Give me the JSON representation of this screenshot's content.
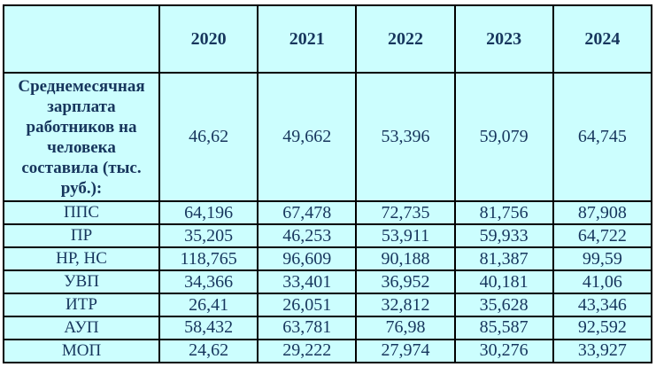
{
  "colors": {
    "table_background": "#ccfefe",
    "text": "#17365d",
    "border": "#000000",
    "page_background": "#ffffff"
  },
  "table": {
    "columns": [
      "",
      "2020",
      "2021",
      "2022",
      "2023",
      "2024"
    ],
    "rows": [
      {
        "label": "Среднемесячная\nзарплата\nработников на\nчеловека\nсоставила (тыс.\nруб.):",
        "values": [
          "46,62",
          "49,662",
          "53,396",
          "59,079",
          "64,745"
        ]
      },
      {
        "label": "ППС",
        "values": [
          "64,196",
          "67,478",
          "72,735",
          "81,756",
          "87,908"
        ]
      },
      {
        "label": "ПР",
        "values": [
          "35,205",
          "46,253",
          "53,911",
          "59,933",
          "64,722"
        ]
      },
      {
        "label": "НР, НС",
        "values": [
          "118,765",
          "96,609",
          "90,188",
          "81,387",
          "99,59"
        ]
      },
      {
        "label": "УВП",
        "values": [
          "34,366",
          "33,401",
          "36,952",
          "40,181",
          "41,06"
        ]
      },
      {
        "label": "ИТР",
        "values": [
          "26,41",
          "26,051",
          "32,812",
          "35,628",
          "43,346"
        ]
      },
      {
        "label": "АУП",
        "values": [
          "58,432",
          "63,781",
          "76,98",
          "85,587",
          "92,592"
        ]
      },
      {
        "label": "МОП",
        "values": [
          "24,62",
          "29,222",
          "27,974",
          "30,276",
          "33,927"
        ]
      }
    ]
  }
}
